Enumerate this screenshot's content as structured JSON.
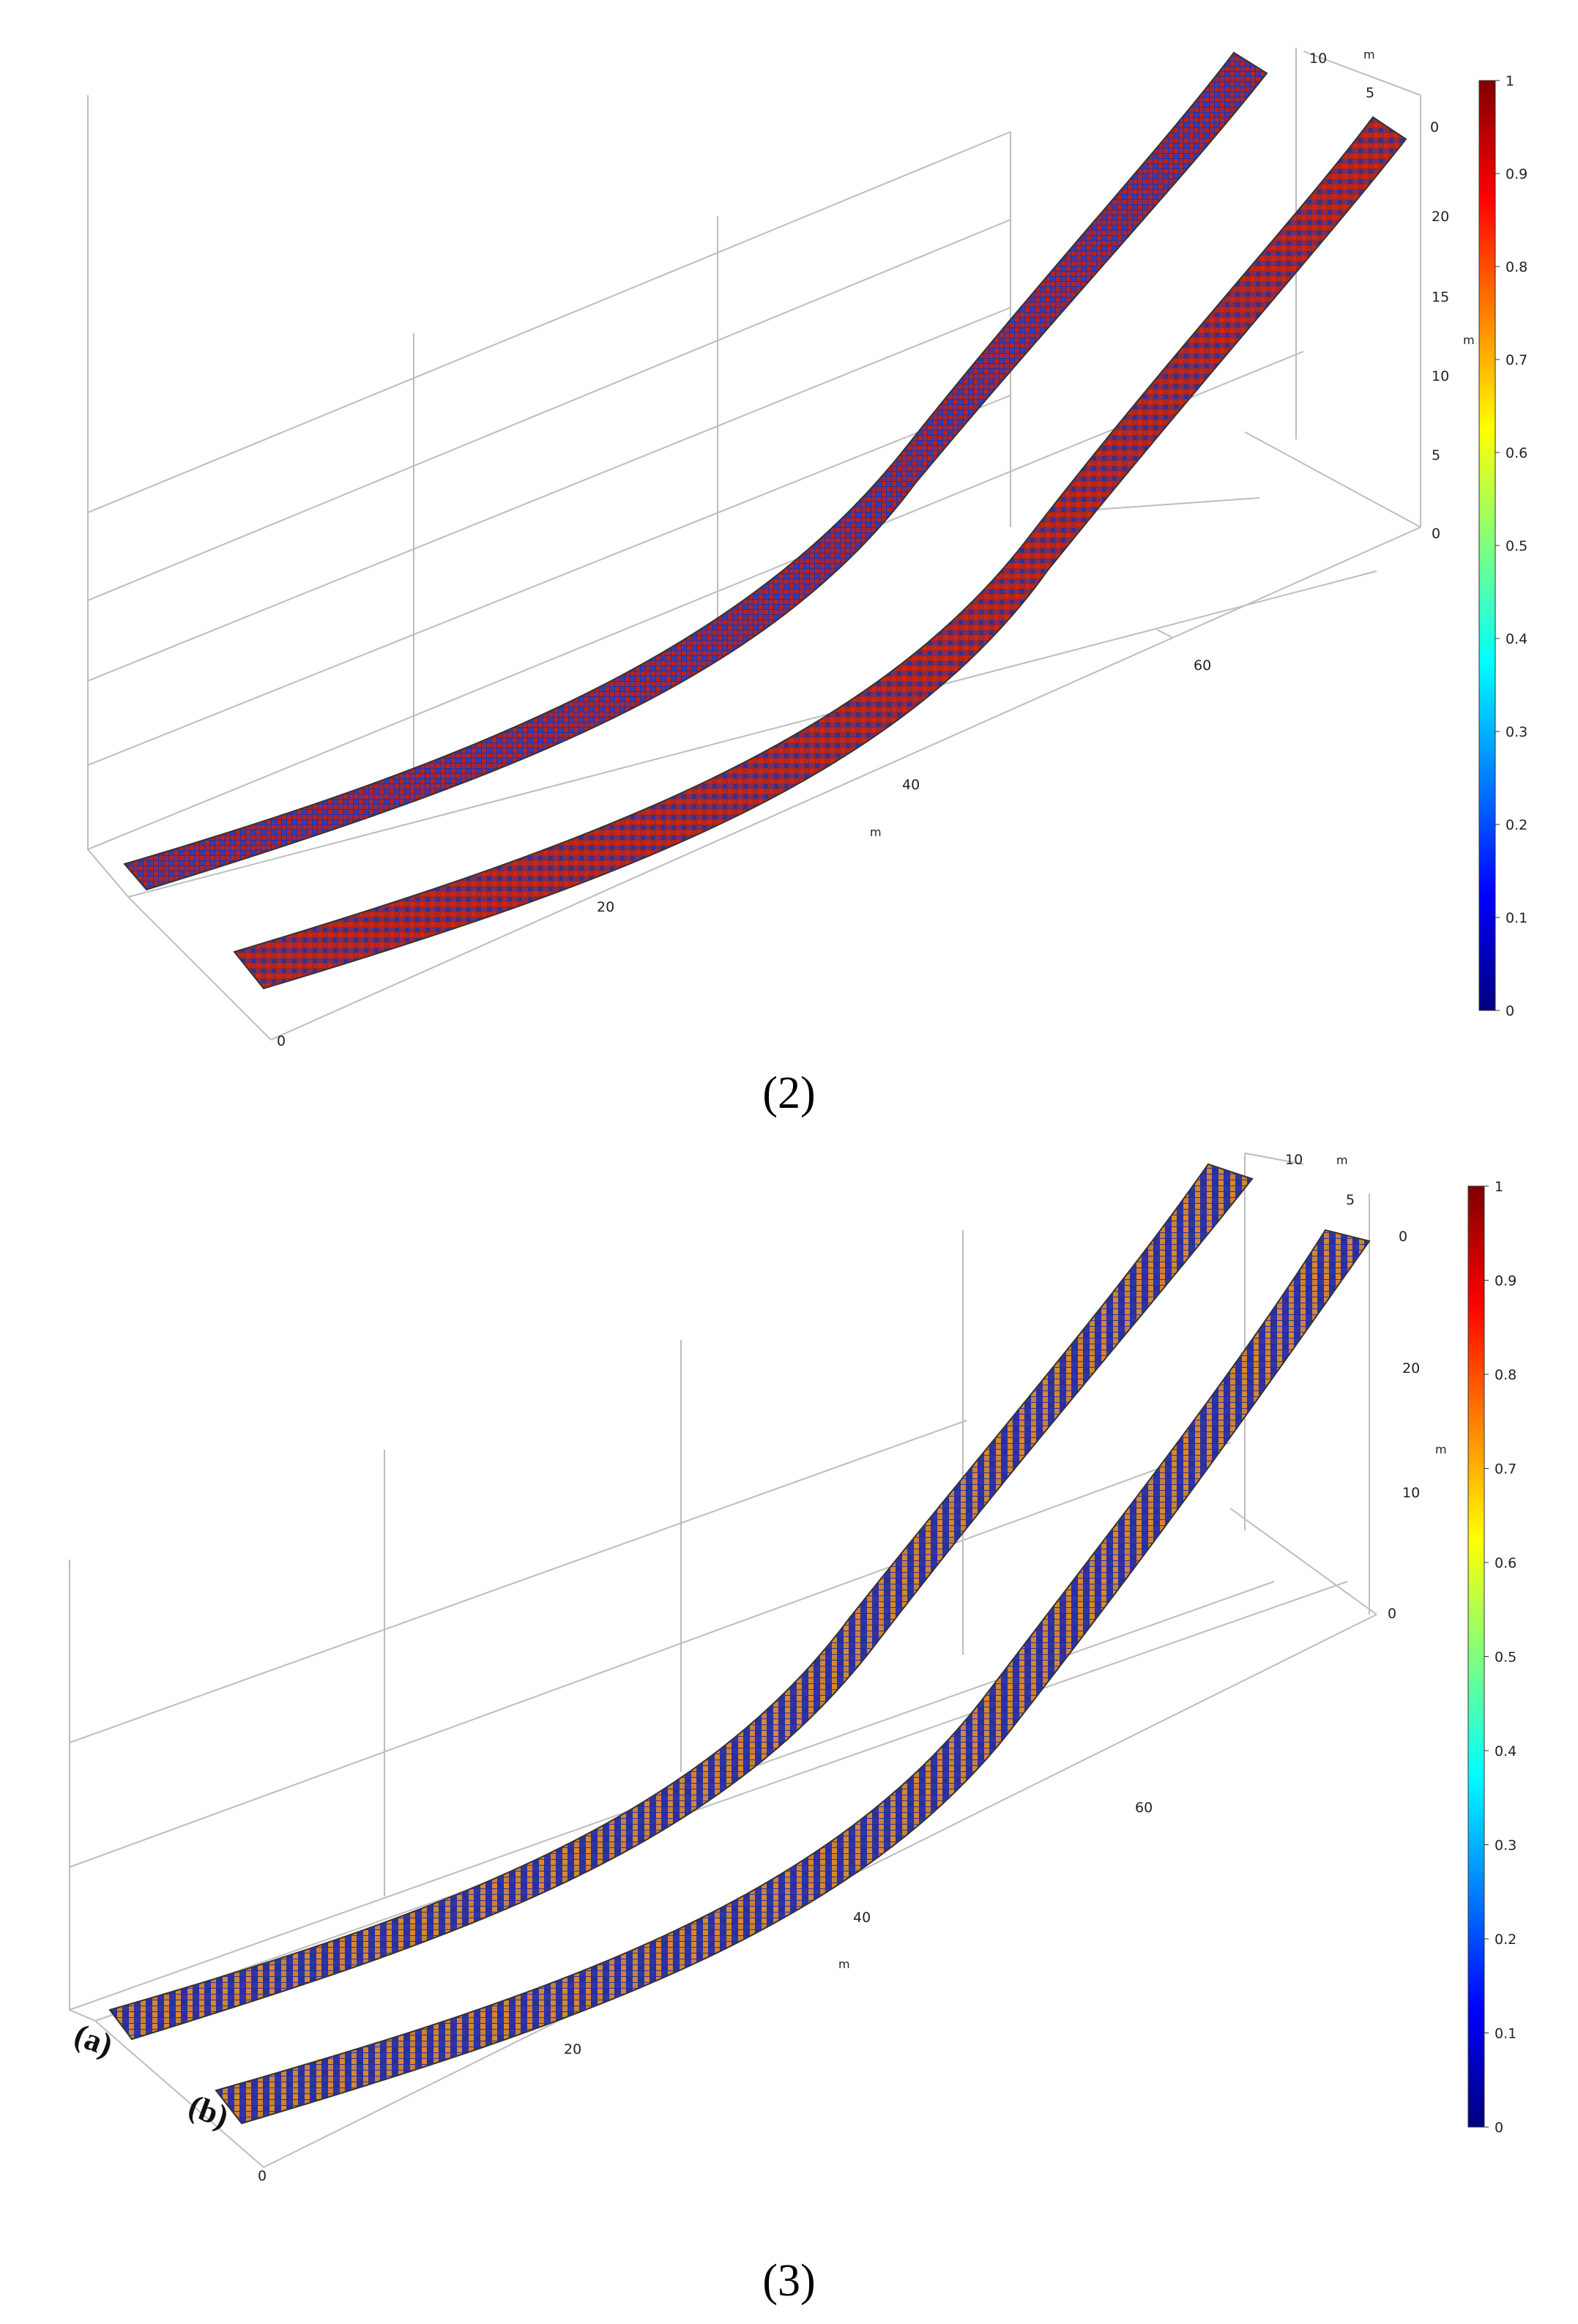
{
  "figures": [
    {
      "id": "2",
      "caption": "(2)",
      "x_ticks": [
        "0",
        "20",
        "40",
        "60"
      ],
      "x_unit": "m",
      "y_ticks": [
        "10",
        "5",
        "0"
      ],
      "y_unit": "m",
      "z_ticks": [
        "20",
        "15",
        "10",
        "5",
        "0"
      ],
      "z_unit": "m",
      "colorbar_ticks": [
        "1",
        "0.9",
        "0.8",
        "0.7",
        "0.6",
        "0.5",
        "0.4",
        "0.3",
        "0.2",
        "0.1",
        "0"
      ],
      "strip_labels": [],
      "strip_colors": {
        "base": "#2b2f9e",
        "accent": "#b8231a"
      }
    },
    {
      "id": "3",
      "caption": "(3)",
      "x_ticks": [
        "0",
        "20",
        "40",
        "60"
      ],
      "x_unit": "m",
      "y_ticks": [
        "10",
        "5",
        "0"
      ],
      "y_unit": "m",
      "z_ticks": [
        "20",
        "10",
        "0"
      ],
      "z_unit": "m",
      "colorbar_ticks": [
        "1",
        "0.9",
        "0.8",
        "0.7",
        "0.6",
        "0.5",
        "0.4",
        "0.3",
        "0.2",
        "0.1",
        "0"
      ],
      "strip_labels": [
        "(a)",
        "(b)"
      ],
      "strip_colors": {
        "base": "#2a2fa0",
        "accent": "#d8872c"
      }
    }
  ],
  "colormap": [
    "#00007f",
    "#0000ff",
    "#007fff",
    "#00ffff",
    "#7fff7f",
    "#ffff00",
    "#ff7f00",
    "#ff0000",
    "#7f0000"
  ]
}
